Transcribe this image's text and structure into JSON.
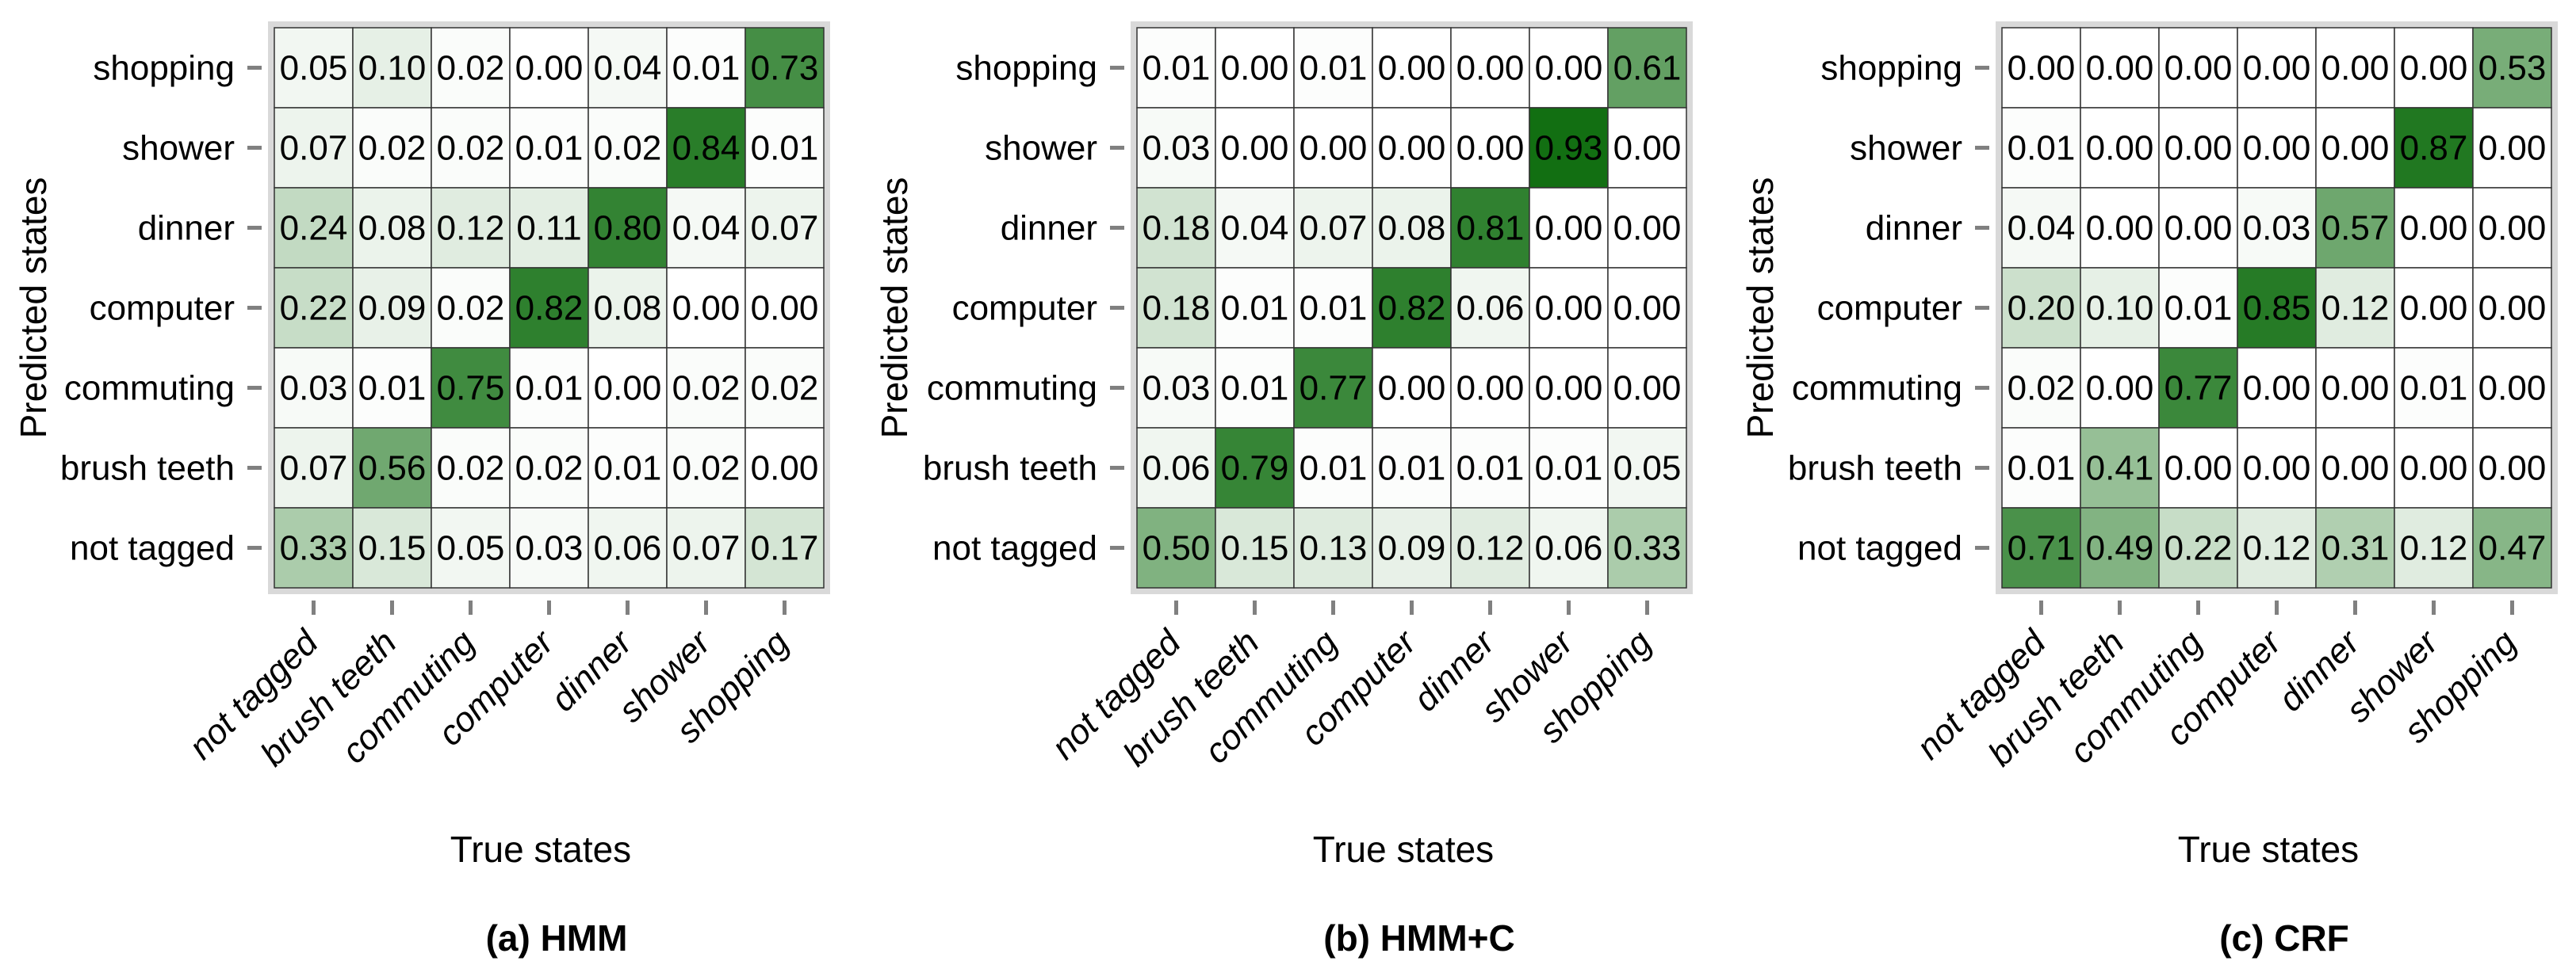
{
  "chart_data": [
    {
      "type": "heatmap",
      "caption": "(a) HMM",
      "xlabel": "True states",
      "ylabel": "Predicted states",
      "x_categories": [
        "not tagged",
        "brush teeth",
        "commuting",
        "computer",
        "dinner",
        "shower",
        "shopping"
      ],
      "y_categories": [
        "shopping",
        "shower",
        "dinner",
        "computer",
        "commuting",
        "brush teeth",
        "not tagged"
      ],
      "values": [
        [
          "0.05",
          "0.10",
          "0.02",
          "0.00",
          "0.04",
          "0.01",
          "0.73"
        ],
        [
          "0.07",
          "0.02",
          "0.02",
          "0.01",
          "0.02",
          "0.84",
          "0.01"
        ],
        [
          "0.24",
          "0.08",
          "0.12",
          "0.11",
          "0.80",
          "0.04",
          "0.07"
        ],
        [
          "0.22",
          "0.09",
          "0.02",
          "0.82",
          "0.08",
          "0.00",
          "0.00"
        ],
        [
          "0.03",
          "0.01",
          "0.75",
          "0.01",
          "0.00",
          "0.02",
          "0.02"
        ],
        [
          "0.07",
          "0.56",
          "0.02",
          "0.02",
          "0.01",
          "0.02",
          "0.00"
        ],
        [
          "0.33",
          "0.15",
          "0.05",
          "0.03",
          "0.06",
          "0.07",
          "0.17"
        ]
      ]
    },
    {
      "type": "heatmap",
      "caption": "(b) HMM+C",
      "xlabel": "True states",
      "ylabel": "Predicted states",
      "x_categories": [
        "not tagged",
        "brush teeth",
        "commuting",
        "computer",
        "dinner",
        "shower",
        "shopping"
      ],
      "y_categories": [
        "shopping",
        "shower",
        "dinner",
        "computer",
        "commuting",
        "brush teeth",
        "not tagged"
      ],
      "values": [
        [
          "0.01",
          "0.00",
          "0.01",
          "0.00",
          "0.00",
          "0.00",
          "0.61"
        ],
        [
          "0.03",
          "0.00",
          "0.00",
          "0.00",
          "0.00",
          "0.93",
          "0.00"
        ],
        [
          "0.18",
          "0.04",
          "0.07",
          "0.08",
          "0.81",
          "0.00",
          "0.00"
        ],
        [
          "0.18",
          "0.01",
          "0.01",
          "0.82",
          "0.06",
          "0.00",
          "0.00"
        ],
        [
          "0.03",
          "0.01",
          "0.77",
          "0.00",
          "0.00",
          "0.00",
          "0.00"
        ],
        [
          "0.06",
          "0.79",
          "0.01",
          "0.01",
          "0.01",
          "0.01",
          "0.05"
        ],
        [
          "0.50",
          "0.15",
          "0.13",
          "0.09",
          "0.12",
          "0.06",
          "0.33"
        ]
      ]
    },
    {
      "type": "heatmap",
      "caption": "(c) CRF",
      "xlabel": "True states",
      "ylabel": "Predicted states",
      "x_categories": [
        "not tagged",
        "brush teeth",
        "commuting",
        "computer",
        "dinner",
        "shower",
        "shopping"
      ],
      "y_categories": [
        "shopping",
        "shower",
        "dinner",
        "computer",
        "commuting",
        "brush teeth",
        "not tagged"
      ],
      "values": [
        [
          "0.00",
          "0.00",
          "0.00",
          "0.00",
          "0.00",
          "0.00",
          "0.53"
        ],
        [
          "0.01",
          "0.00",
          "0.00",
          "0.00",
          "0.00",
          "0.87",
          "0.00"
        ],
        [
          "0.04",
          "0.00",
          "0.00",
          "0.03",
          "0.57",
          "0.00",
          "0.00"
        ],
        [
          "0.20",
          "0.10",
          "0.01",
          "0.85",
          "0.12",
          "0.00",
          "0.00"
        ],
        [
          "0.02",
          "0.00",
          "0.77",
          "0.00",
          "0.00",
          "0.01",
          "0.00"
        ],
        [
          "0.01",
          "0.41",
          "0.00",
          "0.00",
          "0.00",
          "0.00",
          "0.00"
        ],
        [
          "0.71",
          "0.49",
          "0.22",
          "0.12",
          "0.31",
          "0.12",
          "0.47"
        ]
      ]
    }
  ],
  "colors": {
    "low": "#ffffff",
    "high": "#006400",
    "frame": "#d9d9d9",
    "tick": "#808080",
    "cell_border": "#333333"
  }
}
